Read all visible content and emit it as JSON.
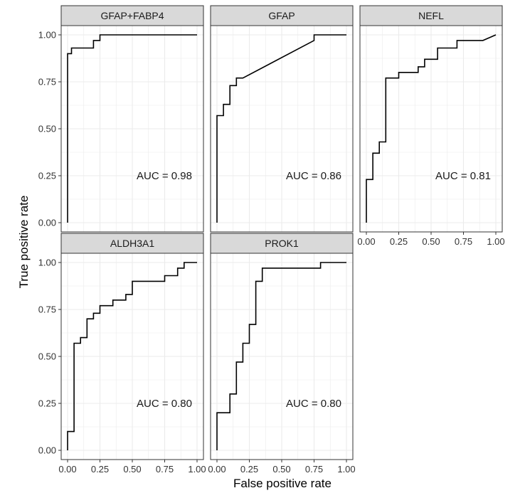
{
  "xlabel": "False positive rate",
  "ylabel": "True positive rate",
  "chart_data": {
    "type": "line",
    "title": "",
    "xlabel": "False positive rate",
    "ylabel": "True positive rate",
    "xlim": [
      0,
      1
    ],
    "ylim": [
      0,
      1
    ],
    "x_ticks": [
      "0.00",
      "0.25",
      "0.50",
      "0.75",
      "1.00"
    ],
    "y_ticks": [
      "0.00",
      "0.25",
      "0.50",
      "0.75",
      "1.00"
    ],
    "grid": true,
    "line_color": "#000000",
    "strip_color": "#d9d9d9",
    "panel_border_color": "#333333",
    "grid_color": "#ebebeb",
    "panels": [
      {
        "name": "GFAP+FABP4",
        "auc": "AUC = 0.98",
        "x": [
          0,
          0,
          0.03,
          0.03,
          0.05,
          0.05,
          0.2,
          0.2,
          0.25,
          0.25,
          1
        ],
        "y": [
          0,
          0.9,
          0.9,
          0.93,
          0.93,
          0.93,
          0.93,
          0.97,
          0.97,
          1,
          1
        ]
      },
      {
        "name": "GFAP",
        "auc": "AUC = 0.86",
        "x": [
          0,
          0,
          0.05,
          0.05,
          0.1,
          0.1,
          0.15,
          0.15,
          0.2,
          0.75,
          0.75,
          1
        ],
        "y": [
          0,
          0.57,
          0.57,
          0.63,
          0.63,
          0.73,
          0.73,
          0.77,
          0.77,
          0.97,
          1,
          1
        ]
      },
      {
        "name": "NEFL",
        "auc": "AUC = 0.81",
        "x": [
          0,
          0,
          0.05,
          0.05,
          0.1,
          0.1,
          0.15,
          0.15,
          0.25,
          0.25,
          0.4,
          0.4,
          0.45,
          0.45,
          0.55,
          0.55,
          0.7,
          0.7,
          0.9,
          1
        ],
        "y": [
          0,
          0.23,
          0.23,
          0.37,
          0.37,
          0.43,
          0.43,
          0.77,
          0.77,
          0.8,
          0.8,
          0.83,
          0.83,
          0.87,
          0.87,
          0.93,
          0.93,
          0.97,
          0.97,
          1
        ]
      },
      {
        "name": "ALDH3A1",
        "auc": "AUC = 0.80",
        "x": [
          0,
          0,
          0.05,
          0.05,
          0.1,
          0.1,
          0.15,
          0.15,
          0.2,
          0.2,
          0.25,
          0.25,
          0.35,
          0.35,
          0.45,
          0.45,
          0.5,
          0.5,
          0.75,
          0.75,
          0.85,
          0.85,
          0.9,
          0.9,
          1
        ],
        "y": [
          0,
          0.1,
          0.1,
          0.57,
          0.57,
          0.6,
          0.6,
          0.7,
          0.7,
          0.73,
          0.73,
          0.77,
          0.77,
          0.8,
          0.8,
          0.83,
          0.83,
          0.9,
          0.9,
          0.93,
          0.93,
          0.97,
          0.97,
          1,
          1
        ]
      },
      {
        "name": "PROK1",
        "auc": "AUC = 0.80",
        "x": [
          0,
          0,
          0.1,
          0.1,
          0.15,
          0.15,
          0.2,
          0.2,
          0.25,
          0.25,
          0.3,
          0.3,
          0.35,
          0.35,
          0.8,
          0.8,
          1
        ],
        "y": [
          0,
          0.2,
          0.2,
          0.3,
          0.3,
          0.47,
          0.47,
          0.57,
          0.57,
          0.67,
          0.67,
          0.9,
          0.9,
          0.97,
          0.97,
          1,
          1
        ]
      }
    ]
  }
}
